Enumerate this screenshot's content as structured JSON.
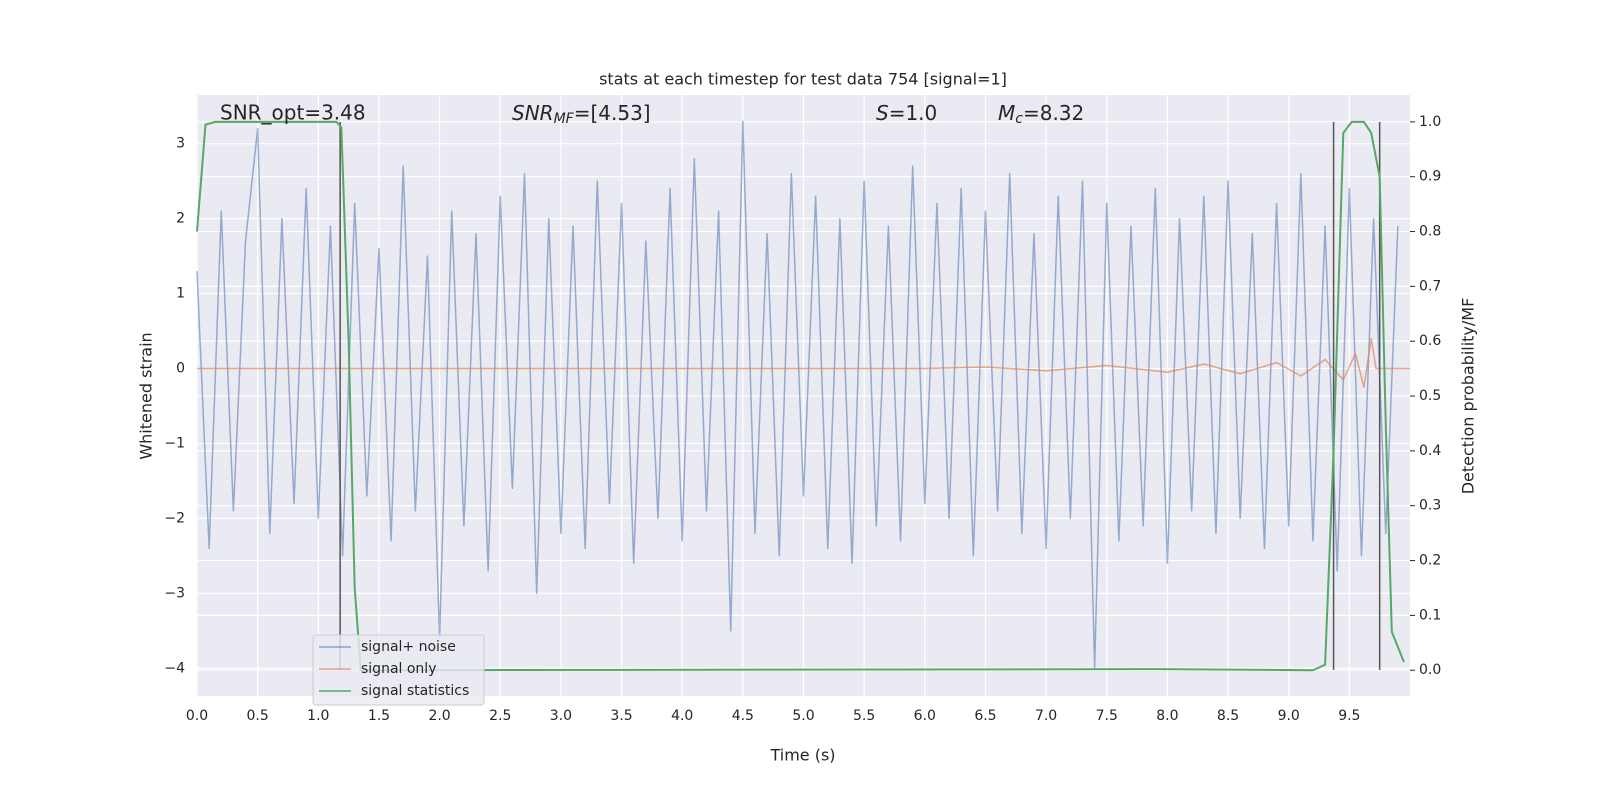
{
  "chart_data": {
    "type": "line",
    "title": "stats at each timestep for test data 754 [signal=1]",
    "xlabel": "Time (s)",
    "ylabel": "Whitened strain",
    "y2label": "Detection probability/MF",
    "annotations": {
      "snr_opt": "SNR_opt=3.48",
      "snr_mf": {
        "symbol": "SNR",
        "sub": "MF",
        "text": "=[4.53]"
      },
      "s": {
        "symbol": "S",
        "text": "=1.0"
      },
      "mc": {
        "symbol": "M",
        "sub": "c",
        "text": "=8.32"
      }
    },
    "xlim": [
      0,
      10
    ],
    "ylim": [
      -4.37,
      3.65
    ],
    "y2lim": [
      -0.047,
      1.049
    ],
    "xticks": [
      {
        "value": 0,
        "label": "0.0"
      },
      {
        "value": 0.5,
        "label": "0.5"
      },
      {
        "value": 1,
        "label": "1.0"
      },
      {
        "value": 1.5,
        "label": "1.5"
      },
      {
        "value": 2,
        "label": "2.0"
      },
      {
        "value": 2.5,
        "label": "2.5"
      },
      {
        "value": 3,
        "label": "3.0"
      },
      {
        "value": 3.5,
        "label": "3.5"
      },
      {
        "value": 4,
        "label": "4.0"
      },
      {
        "value": 4.5,
        "label": "4.5"
      },
      {
        "value": 5,
        "label": "5.0"
      },
      {
        "value": 5.5,
        "label": "5.5"
      },
      {
        "value": 6,
        "label": "6.0"
      },
      {
        "value": 6.5,
        "label": "6.5"
      },
      {
        "value": 7,
        "label": "7.0"
      },
      {
        "value": 7.5,
        "label": "7.5"
      },
      {
        "value": 8,
        "label": "8.0"
      },
      {
        "value": 8.5,
        "label": "8.5"
      },
      {
        "value": 9,
        "label": "9.0"
      },
      {
        "value": 9.5,
        "label": "9.5"
      }
    ],
    "yticks": [
      {
        "value": -4,
        "label": "−4"
      },
      {
        "value": -3,
        "label": "−3"
      },
      {
        "value": -2,
        "label": "−2"
      },
      {
        "value": -1,
        "label": "−1"
      },
      0,
      1,
      2,
      3
    ],
    "y2ticks": [
      {
        "value": 0,
        "label": "0.0"
      },
      0.1,
      0.2,
      0.3,
      0.4,
      0.5,
      0.6,
      0.7,
      0.8,
      0.9,
      {
        "value": 1,
        "label": "1.0"
      }
    ],
    "grid": true,
    "series": [
      {
        "name": "signal+ noise",
        "color": "#4c72b0",
        "x": [
          0,
          0.1,
          0.2,
          0.3,
          0.4,
          0.5,
          0.6,
          0.7,
          0.8,
          0.9,
          1,
          1.1,
          1.2,
          1.3,
          1.4,
          1.5,
          1.6,
          1.7,
          1.8,
          1.9,
          2,
          2.1,
          2.2,
          2.3,
          2.4,
          2.5,
          2.6,
          2.7,
          2.8,
          2.9,
          3,
          3.1,
          3.2,
          3.3,
          3.4,
          3.5,
          3.6,
          3.7,
          3.8,
          3.9,
          4,
          4.1,
          4.2,
          4.3,
          4.4,
          4.5,
          4.6,
          4.7,
          4.8,
          4.9,
          5,
          5.1,
          5.2,
          5.3,
          5.4,
          5.5,
          5.6,
          5.7,
          5.8,
          5.9,
          6,
          6.1,
          6.2,
          6.3,
          6.4,
          6.5,
          6.6,
          6.7,
          6.8,
          6.9,
          7,
          7.1,
          7.2,
          7.3,
          7.4,
          7.5,
          7.6,
          7.7,
          7.8,
          7.9,
          8,
          8.1,
          8.2,
          8.3,
          8.4,
          8.5,
          8.6,
          8.7,
          8.8,
          8.9,
          9,
          9.1,
          9.2,
          9.3,
          9.4,
          9.5,
          9.6,
          9.7,
          9.8,
          9.9
        ],
        "values": [
          1.3,
          -2.4,
          2.1,
          -1.9,
          1.7,
          3.2,
          -2.2,
          2.0,
          -1.8,
          2.4,
          -2.0,
          1.9,
          -2.5,
          2.2,
          -1.7,
          1.6,
          -2.3,
          2.7,
          -1.9,
          1.5,
          -3.6,
          2.1,
          -2.1,
          1.8,
          -2.7,
          2.3,
          -1.6,
          2.6,
          -3.0,
          2.0,
          -2.2,
          1.9,
          -2.4,
          2.5,
          -1.8,
          2.2,
          -2.6,
          1.7,
          -2.0,
          2.4,
          -2.3,
          2.8,
          -1.9,
          2.1,
          -3.5,
          3.3,
          -2.2,
          1.8,
          -2.5,
          2.6,
          -1.7,
          2.3,
          -2.4,
          2.0,
          -2.6,
          2.5,
          -2.1,
          1.9,
          -2.3,
          2.7,
          -1.8,
          2.2,
          -2.0,
          2.4,
          -2.5,
          2.1,
          -1.9,
          2.6,
          -2.2,
          1.8,
          -2.4,
          2.3,
          -2.0,
          2.5,
          -4.0,
          2.2,
          -2.3,
          1.9,
          -2.1,
          2.4,
          -2.6,
          2.0,
          -1.9,
          2.3,
          -2.2,
          2.5,
          -2.0,
          1.8,
          -2.4,
          2.2,
          -2.1,
          2.6,
          -2.3,
          1.9,
          -2.7,
          2.4,
          -2.5,
          2.0,
          -2.2,
          1.9
        ]
      },
      {
        "name": "signal only",
        "color": "#dd8452",
        "x": [
          0,
          6.0,
          6.5,
          7.0,
          7.5,
          8.0,
          8.3,
          8.6,
          8.9,
          9.1,
          9.3,
          9.45,
          9.55,
          9.62,
          9.68,
          9.72,
          10.0
        ],
        "values": [
          0,
          0,
          0.02,
          -0.03,
          0.04,
          -0.05,
          0.06,
          -0.07,
          0.08,
          -0.1,
          0.12,
          -0.15,
          0.2,
          -0.25,
          0.4,
          0,
          0
        ]
      },
      {
        "name": "signal statistics",
        "color": "#55a868",
        "axis": "y2",
        "x": [
          0,
          0.07,
          0.15,
          1.15,
          1.19,
          1.25,
          1.3,
          1.35,
          7.9,
          9.2,
          9.3,
          9.37,
          9.45,
          9.52,
          9.62,
          9.68,
          9.75,
          9.8,
          9.85,
          9.95
        ],
        "values": [
          0.8,
          0.995,
          1.0,
          1.0,
          0.99,
          0.6,
          0.15,
          0.0,
          0.002,
          0.0,
          0.01,
          0.4,
          0.98,
          1.0,
          1.0,
          0.98,
          0.9,
          0.45,
          0.07,
          0.015
        ]
      }
    ],
    "vlines": {
      "color": "#555555",
      "x": [
        1.18,
        9.37,
        9.75
      ]
    }
  }
}
